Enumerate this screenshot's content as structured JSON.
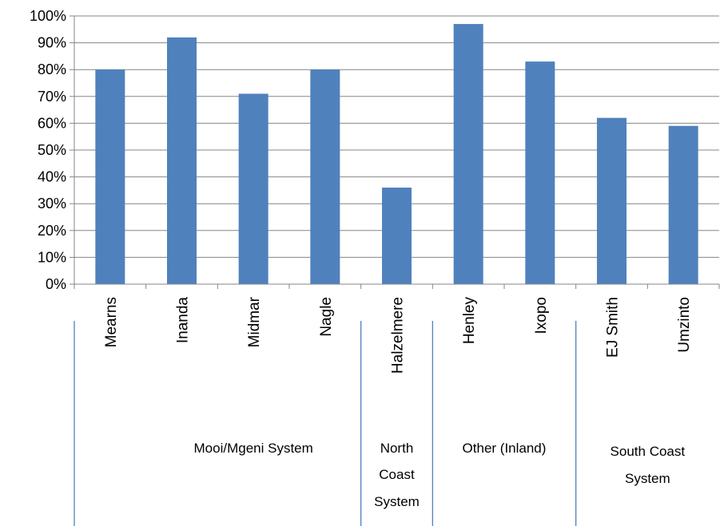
{
  "chart_data": {
    "type": "bar",
    "title": "",
    "xlabel": "",
    "ylabel": "",
    "categories": [
      "Mearns",
      "Inanda",
      "Midmar",
      "Nagle",
      "Halzelmere",
      "Henley",
      "Ixopo",
      "EJ Smith",
      "Umzinto"
    ],
    "values": [
      80,
      92,
      71,
      80,
      36,
      97,
      83,
      62,
      59
    ],
    "ylim": [
      0,
      100
    ],
    "y_ticks": [
      "0%",
      "10%",
      "20%",
      "30%",
      "40%",
      "50%",
      "60%",
      "70%",
      "80%",
      "90%",
      "100%"
    ],
    "grid": true,
    "legend": "none",
    "bar_color": "#4F81BD",
    "groups": [
      {
        "label_lines": [
          "Mooi/Mgeni System"
        ],
        "start_index": 0,
        "end_index": 3
      },
      {
        "label_lines": [
          "North",
          "Coast",
          "System"
        ],
        "start_index": 4,
        "end_index": 4
      },
      {
        "label_lines": [
          "Other (Inland)"
        ],
        "start_index": 5,
        "end_index": 6
      },
      {
        "label_lines": [
          "South Coast",
          "System"
        ],
        "start_index": 7,
        "end_index": 8
      }
    ]
  }
}
